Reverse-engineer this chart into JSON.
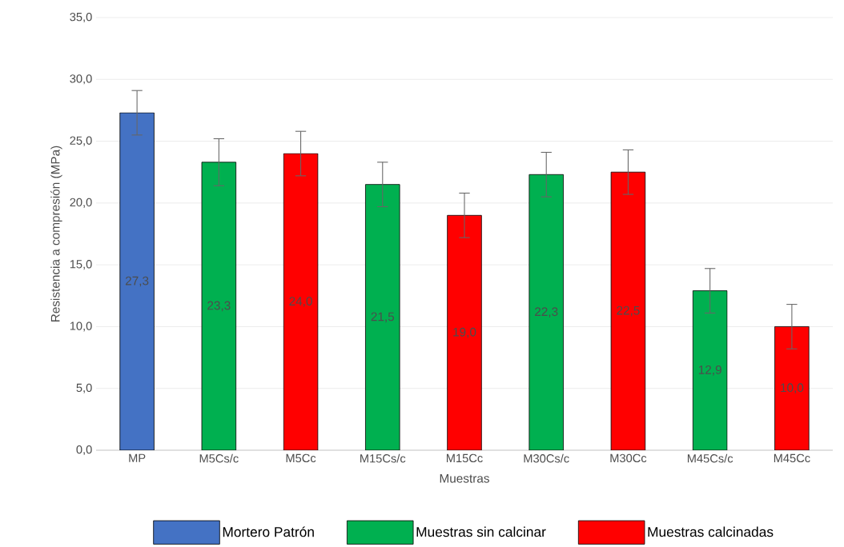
{
  "chart_data": {
    "type": "bar",
    "xlabel": "Muestras",
    "ylabel": "Resistencia a compresión (MPa)",
    "categories": [
      "MP",
      "M5Cs/c",
      "M5Cc",
      "M15Cs/c",
      "M15Cc",
      "M30Cs/c",
      "M30Cc",
      "M45Cs/c",
      "M45Cc"
    ],
    "series": [
      {
        "name": "Mortero Patrón",
        "color": "#4472c4",
        "values": [
          27.3,
          null,
          null,
          null,
          null,
          null,
          null,
          null,
          null
        ],
        "errors": [
          1.8,
          null,
          null,
          null,
          null,
          null,
          null,
          null,
          null
        ],
        "value_labels": [
          "27,3",
          null,
          null,
          null,
          null,
          null,
          null,
          null,
          null
        ]
      },
      {
        "name": "Muestras sin calcinar",
        "color": "#00b050",
        "values": [
          null,
          23.3,
          null,
          21.5,
          null,
          22.3,
          null,
          12.9,
          null
        ],
        "errors": [
          null,
          1.9,
          null,
          1.8,
          null,
          1.8,
          null,
          1.8,
          null
        ],
        "value_labels": [
          null,
          "23,3",
          null,
          "21,5",
          null,
          "22,3",
          null,
          "12,9",
          null
        ]
      },
      {
        "name": "Muestras calcinadas",
        "color": "#ff0000",
        "values": [
          null,
          null,
          24.0,
          null,
          19.0,
          null,
          22.5,
          null,
          10.0
        ],
        "errors": [
          null,
          null,
          1.8,
          null,
          1.8,
          null,
          1.8,
          null,
          1.8
        ],
        "value_labels": [
          null,
          null,
          "24,0",
          null,
          "19,0",
          null,
          "22,5",
          null,
          "10,0"
        ]
      }
    ],
    "ylim": [
      0,
      35
    ],
    "yticks": [
      {
        "value": 0,
        "label": "0,0"
      },
      {
        "value": 5,
        "label": "5,0"
      },
      {
        "value": 10,
        "label": "10,0"
      },
      {
        "value": 15,
        "label": "15,0"
      },
      {
        "value": 20,
        "label": "20,0"
      },
      {
        "value": 25,
        "label": "25,0"
      },
      {
        "value": 30,
        "label": "30,0"
      },
      {
        "value": 35,
        "label": "35,0"
      }
    ],
    "grid": "y",
    "legend": "bottom"
  }
}
